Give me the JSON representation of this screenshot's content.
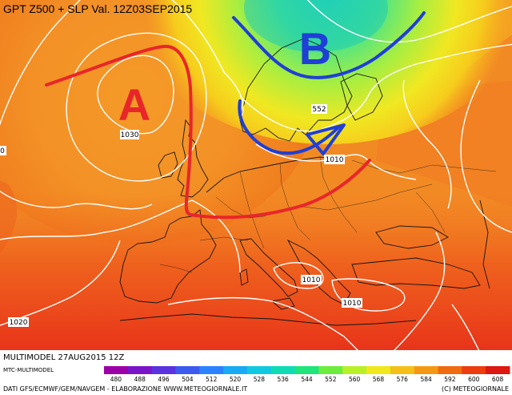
{
  "header": {
    "title": "GPT Z500 + SLP Val. 12Z03SEP2015"
  },
  "annotations": {
    "high_letter": "A",
    "low_letter": "B",
    "high_color": "#e8262a",
    "low_color": "#1f3fd6",
    "arrow_color": "#1f3fd6",
    "ridge_color": "#e8262a"
  },
  "isobar_labels": [
    {
      "text": "1030",
      "name": "isobar-label-1030"
    },
    {
      "text": "552",
      "name": "isobar-label-552"
    },
    {
      "text": "1010",
      "name": "isobar-label-1010-baltic"
    },
    {
      "text": "1010",
      "name": "isobar-label-1010-adriatic"
    },
    {
      "text": "1010",
      "name": "isobar-label-1010-aegean"
    },
    {
      "text": "1020",
      "name": "isobar-label-1020"
    },
    {
      "text": "0",
      "name": "isobar-label-edge"
    }
  ],
  "footer": {
    "run_info": "MULTIMODEL 27AUG2015 12Z",
    "model": "MTC-MULTIMODEL",
    "credits_left": "DATI GFS/ECMWF/GEM/NAVGEM - ELABORAZIONE WWW.METEOGIORNALE.IT",
    "credits_right": "(C) METEOGIORNALE"
  },
  "legend": {
    "values": [
      "480",
      "488",
      "496",
      "504",
      "512",
      "520",
      "528",
      "536",
      "544",
      "552",
      "560",
      "568",
      "576",
      "584",
      "592",
      "600",
      "608"
    ],
    "colors": [
      "#9b00a8",
      "#7a14c8",
      "#5a32e0",
      "#3c5af0",
      "#2a82ff",
      "#18aaf4",
      "#10c8e0",
      "#10dcb4",
      "#20e47c",
      "#6cec3c",
      "#b8f028",
      "#f0e81c",
      "#f4c018",
      "#f49814",
      "#f06a10",
      "#ec3c10",
      "#dc1810"
    ]
  }
}
